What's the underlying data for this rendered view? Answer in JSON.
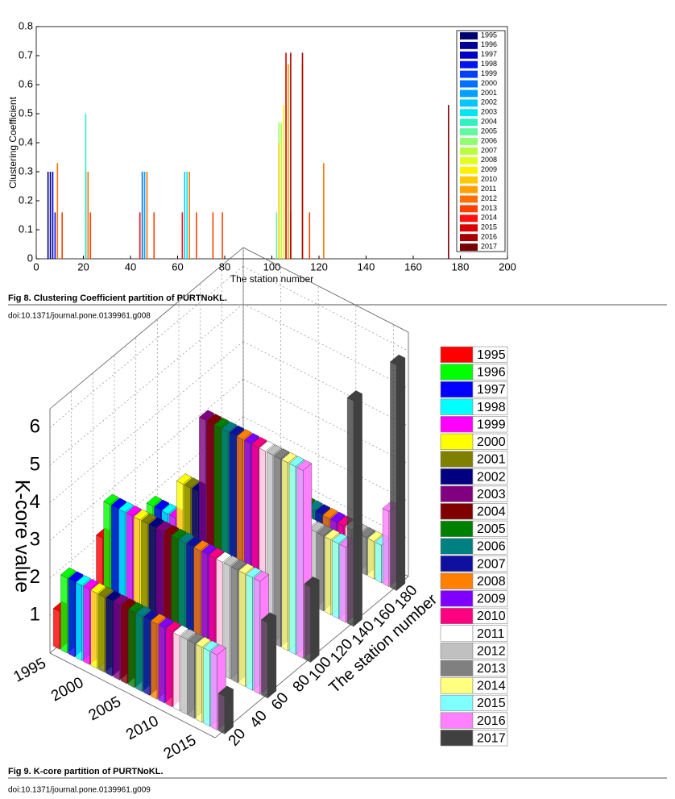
{
  "chart_data": [
    {
      "type": "bar",
      "xlabel": "The station number",
      "ylabel": "Clustering Coefficient",
      "xlim": [
        0,
        200
      ],
      "xticks": [
        0,
        20,
        40,
        60,
        80,
        100,
        120,
        140,
        160,
        180,
        200
      ],
      "ylim": [
        0,
        0.8
      ],
      "yticks": [
        0,
        0.1,
        0.2,
        0.3,
        0.4,
        0.5,
        0.6,
        0.7,
        0.8
      ],
      "series": [
        {
          "name": "1995",
          "color": "#00006e",
          "x": [
            5
          ],
          "values": [
            0.3
          ]
        },
        {
          "name": "1996",
          "color": "#000096",
          "x": [
            6
          ],
          "values": [
            0.3
          ]
        },
        {
          "name": "1997",
          "color": "#0000c8",
          "x": [
            7
          ],
          "values": [
            0.3
          ]
        },
        {
          "name": "1998",
          "color": "#0014f0",
          "x": [
            8
          ],
          "values": [
            0.16
          ]
        },
        {
          "name": "1999",
          "color": "#0040ff",
          "x": [
            21
          ],
          "values": [
            0.3
          ]
        },
        {
          "name": "2000",
          "color": "#0070ff",
          "x": [
            45
          ],
          "values": [
            0.3
          ]
        },
        {
          "name": "2001",
          "color": "#00a0ff",
          "x": [
            46
          ],
          "values": [
            0.3
          ]
        },
        {
          "name": "2002",
          "color": "#00c8ff",
          "x": [
            63
          ],
          "values": [
            0.3
          ]
        },
        {
          "name": "2003",
          "color": "#00e6f0",
          "x": [
            64
          ],
          "values": [
            0.3
          ]
        },
        {
          "name": "2004",
          "color": "#30f0c0",
          "x": [
            21
          ],
          "values": [
            0.5
          ]
        },
        {
          "name": "2005",
          "color": "#60f8a0",
          "x": [
            102
          ],
          "values": [
            0.16
          ]
        },
        {
          "name": "2006",
          "color": "#90ff70",
          "x": [
            103
          ],
          "values": [
            0.47
          ]
        },
        {
          "name": "2007",
          "color": "#b8ff40",
          "x": [
            104
          ],
          "values": [
            0.47
          ]
        },
        {
          "name": "2008",
          "color": "#e0ff20",
          "x": [
            105
          ],
          "values": [
            0.53
          ]
        },
        {
          "name": "2009",
          "color": "#fff000",
          "x": [
            106
          ],
          "values": [
            0.67
          ]
        },
        {
          "name": "2010",
          "color": "#ffc800",
          "x": [
            103
          ],
          "values": [
            0.4
          ]
        },
        {
          "name": "2011",
          "color": "#ffa000",
          "x": [
            107
          ],
          "values": [
            0.67
          ]
        },
        {
          "name": "2012",
          "color": "#ff7000",
          "x": [
            9,
            22,
            47,
            65,
            113,
            122
          ],
          "values": [
            0.33,
            0.3,
            0.3,
            0.3,
            0.67,
            0.33
          ]
        },
        {
          "name": "2013",
          "color": "#ff4000",
          "x": [
            11,
            23,
            50,
            68,
            75,
            79,
            108,
            116
          ],
          "values": [
            0.16,
            0.16,
            0.16,
            0.16,
            0.16,
            0.16,
            0.16,
            0.16
          ]
        },
        {
          "name": "2014",
          "color": "#ff1010",
          "x": [
            44,
            62
          ],
          "values": [
            0.16,
            0.16
          ]
        },
        {
          "name": "2015",
          "color": "#d80000",
          "x": [
            106
          ],
          "values": [
            0.71
          ]
        },
        {
          "name": "2016",
          "color": "#a80000",
          "x": [
            108,
            113
          ],
          "values": [
            0.71,
            0.71
          ]
        },
        {
          "name": "2017",
          "color": "#780000",
          "x": [
            175
          ],
          "values": [
            0.53
          ]
        }
      ]
    },
    {
      "type": "bar3d",
      "zlabel": "K-core value",
      "ylabel": "The station number",
      "zlim": [
        0,
        6.5
      ],
      "zticks": [
        1,
        2,
        3,
        4,
        5,
        6
      ],
      "ylim": [
        0,
        180
      ],
      "yticks": [
        20,
        40,
        60,
        80,
        100,
        120,
        140,
        160,
        180
      ],
      "xlim": [
        1995,
        2017
      ],
      "xticks": [
        1995,
        2000,
        2005,
        2010,
        2015
      ],
      "stations": [
        10,
        50,
        90,
        130,
        170
      ],
      "series": [
        {
          "name": "1995",
          "color": "#ff0000",
          "values": [
            1,
            2,
            1,
            0,
            0
          ]
        },
        {
          "name": "1996",
          "color": "#00ff00",
          "values": [
            2,
            3,
            2,
            1,
            0
          ]
        },
        {
          "name": "1997",
          "color": "#0000ff",
          "values": [
            2,
            3,
            2,
            1,
            0
          ]
        },
        {
          "name": "1998",
          "color": "#00ffff",
          "values": [
            2,
            3,
            2,
            1,
            0
          ]
        },
        {
          "name": "1999",
          "color": "#ff00ff",
          "values": [
            2,
            3,
            2,
            1,
            0
          ]
        },
        {
          "name": "2000",
          "color": "#ffff00",
          "values": [
            2,
            3,
            3,
            1,
            0
          ]
        },
        {
          "name": "2001",
          "color": "#808000",
          "values": [
            2,
            3,
            3,
            1,
            0
          ]
        },
        {
          "name": "2002",
          "color": "#000080",
          "values": [
            2,
            3,
            3,
            2,
            0
          ]
        },
        {
          "name": "2003",
          "color": "#800080",
          "values": [
            2,
            3,
            5,
            2,
            0
          ]
        },
        {
          "name": "2004",
          "color": "#800000",
          "values": [
            2,
            3,
            5,
            2,
            1
          ]
        },
        {
          "name": "2005",
          "color": "#008000",
          "values": [
            2,
            3,
            5,
            2,
            1
          ]
        },
        {
          "name": "2006",
          "color": "#008080",
          "values": [
            2,
            3,
            5,
            2,
            1
          ]
        },
        {
          "name": "2007",
          "color": "#1010a0",
          "values": [
            2,
            3,
            5,
            2,
            1
          ]
        },
        {
          "name": "2008",
          "color": "#ff8000",
          "values": [
            2,
            3,
            5,
            2,
            1
          ]
        },
        {
          "name": "2009",
          "color": "#8000ff",
          "values": [
            2,
            3,
            5,
            2,
            1
          ]
        },
        {
          "name": "2010",
          "color": "#ff0080",
          "values": [
            2,
            3,
            5,
            2,
            1
          ]
        },
        {
          "name": "2011",
          "color": "#ffffff",
          "values": [
            2,
            3,
            5,
            2,
            1
          ]
        },
        {
          "name": "2012",
          "color": "#c0c0c0",
          "values": [
            2,
            3,
            5,
            2,
            1
          ]
        },
        {
          "name": "2013",
          "color": "#808080",
          "values": [
            2,
            3,
            5,
            2,
            1
          ]
        },
        {
          "name": "2014",
          "color": "#ffff80",
          "values": [
            2,
            3,
            5,
            2,
            1
          ]
        },
        {
          "name": "2015",
          "color": "#80ffff",
          "values": [
            2,
            3,
            5,
            2,
            1
          ]
        },
        {
          "name": "2016",
          "color": "#ff80ff",
          "values": [
            2,
            3,
            5,
            2,
            2
          ]
        },
        {
          "name": "2017",
          "color": "#404040",
          "values": [
            1,
            2,
            2,
            6,
            6
          ]
        }
      ]
    }
  ],
  "figures": [
    {
      "caption": "Fig 8. Clustering Coefficient partition of PURTNoKL.",
      "doi": "doi:10.1371/journal.pone.0139961.g008"
    },
    {
      "caption": "Fig 9. K-core partition of PURTNoKL.",
      "doi": "doi:10.1371/journal.pone.0139961.g009"
    }
  ]
}
